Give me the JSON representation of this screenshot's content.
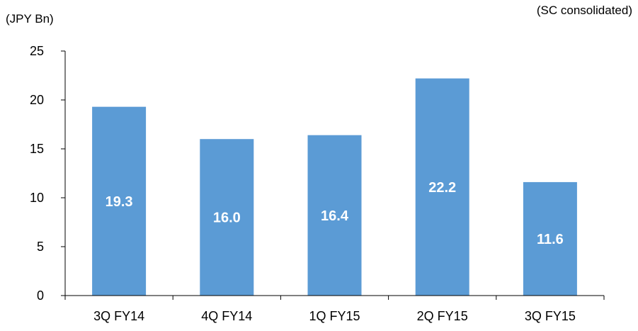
{
  "chart_data": {
    "type": "bar",
    "unit_label": "(JPY Bn)",
    "note": "(SC consolidated)",
    "categories": [
      "3Q FY14",
      "4Q FY14",
      "1Q FY15",
      "2Q FY15",
      "3Q FY15"
    ],
    "values": [
      19.3,
      16.0,
      16.4,
      22.2,
      11.6
    ],
    "data_labels": [
      "19.3",
      "16.0",
      "16.4",
      "22.2",
      "11.6"
    ],
    "yticks": [
      "0",
      "5",
      "10",
      "15",
      "20",
      "25"
    ],
    "ylim": [
      0,
      25
    ],
    "bar_color": "#5B9BD5",
    "grid": false,
    "legend": "none"
  }
}
